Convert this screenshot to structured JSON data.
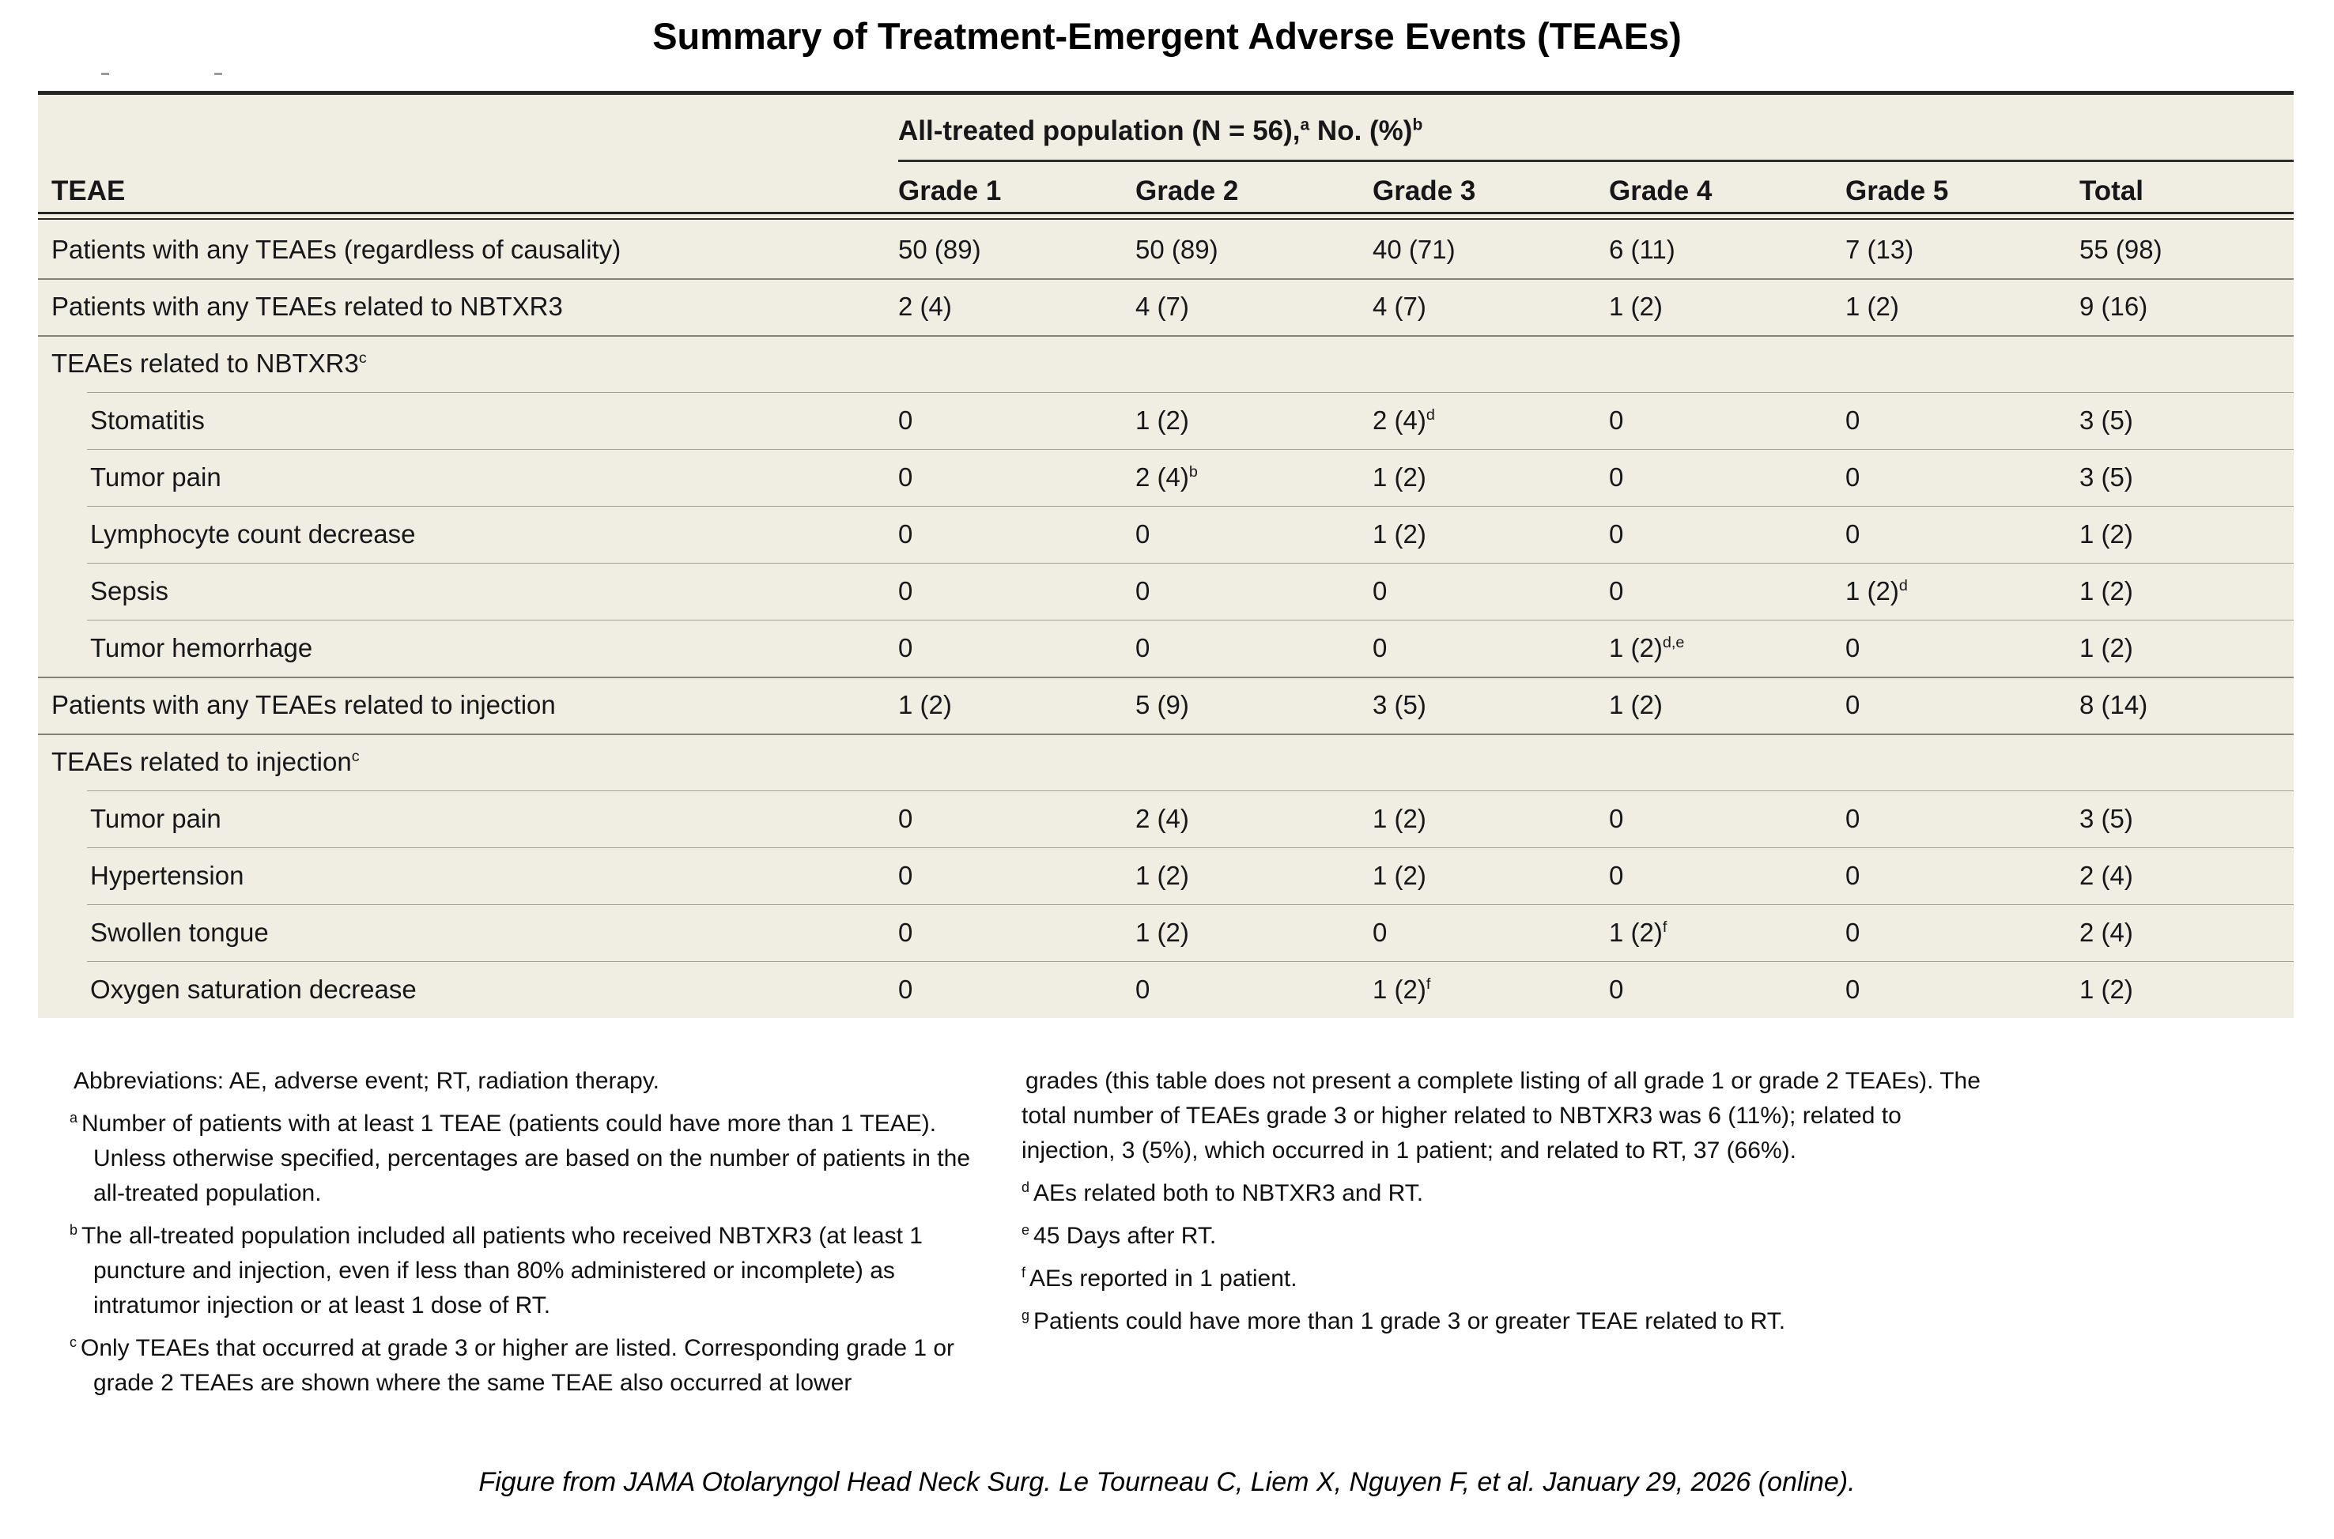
{
  "title": "Summary of Treatment-Emergent Adverse Events (TEAEs)",
  "colors": {
    "table_background": "#f0eee3",
    "heavy_rule": "#262626",
    "main_row_separator": "#84837b",
    "sub_row_separator": "#a09f93",
    "text": "#17171a"
  },
  "table": {
    "population_header": "All-treated population (N = 56),^a^ No. (%)^b^",
    "row_header": "TEAE",
    "columns": [
      "Grade 1",
      "Grade 2",
      "Grade 3",
      "Grade 4",
      "Grade 5",
      "Total"
    ],
    "rows": [
      {
        "label": "Patients with any TEAEs (regardless of causality)",
        "indent": 0,
        "section": false,
        "values": [
          "50 (89)",
          "50 (89)",
          "40 (71)",
          "6 (11)",
          "7 (13)",
          "55 (98)"
        ]
      },
      {
        "label": "Patients with any TEAEs related to NBTXR3",
        "indent": 0,
        "section": false,
        "values": [
          "2 (4)",
          "4 (7)",
          "4 (7)",
          "1 (2)",
          "1 (2)",
          "9 (16)"
        ]
      },
      {
        "label": "TEAEs related to NBTXR3^c^",
        "indent": 0,
        "section": true,
        "values": [
          "",
          "",
          "",
          "",
          "",
          ""
        ]
      },
      {
        "label": "Stomatitis",
        "indent": 1,
        "section": false,
        "values": [
          "0",
          "1 (2)",
          "2 (4)^d^",
          "0",
          "0",
          "3 (5)"
        ]
      },
      {
        "label": "Tumor pain",
        "indent": 1,
        "section": false,
        "values": [
          "0",
          "2 (4)^b^",
          "1 (2)",
          "0",
          "0",
          "3 (5)"
        ]
      },
      {
        "label": "Lymphocyte count decrease",
        "indent": 1,
        "section": false,
        "values": [
          "0",
          "0",
          "1 (2)",
          "0",
          "0",
          "1 (2)"
        ]
      },
      {
        "label": "Sepsis",
        "indent": 1,
        "section": false,
        "values": [
          "0",
          "0",
          "0",
          "0",
          "1 (2)^d^",
          "1 (2)"
        ]
      },
      {
        "label": "Tumor hemorrhage",
        "indent": 1,
        "section": false,
        "values": [
          "0",
          "0",
          "0",
          "1 (2)^d,e^",
          "0",
          "1 (2)"
        ]
      },
      {
        "label": "Patients with any TEAEs related to injection",
        "indent": 0,
        "section": false,
        "values": [
          "1 (2)",
          "5 (9)",
          "3 (5)",
          "1 (2)",
          "0",
          "8 (14)"
        ]
      },
      {
        "label": "TEAEs related to injection^c^",
        "indent": 0,
        "section": true,
        "values": [
          "",
          "",
          "",
          "",
          "",
          ""
        ]
      },
      {
        "label": "Tumor pain",
        "indent": 1,
        "section": false,
        "values": [
          "0",
          "2 (4)",
          "1 (2)",
          "0",
          "0",
          "3 (5)"
        ]
      },
      {
        "label": "Hypertension",
        "indent": 1,
        "section": false,
        "values": [
          "0",
          "1 (2)",
          "1 (2)",
          "0",
          "0",
          "2 (4)"
        ]
      },
      {
        "label": "Swollen tongue",
        "indent": 1,
        "section": false,
        "values": [
          "0",
          "1 (2)",
          "0",
          "1 (2)^f^",
          "0",
          "2 (4)"
        ]
      },
      {
        "label": "Oxygen saturation decrease",
        "indent": 1,
        "section": false,
        "values": [
          "0",
          "0",
          "1 (2)^f^",
          "0",
          "0",
          "1 (2)"
        ]
      }
    ]
  },
  "footnotes": {
    "left": [
      {
        "sup": "",
        "text": "Abbreviations: AE, adverse event; RT, radiation therapy."
      },
      {
        "sup": "a",
        "text": "Number of patients with at least 1 TEAE (patients could have more than 1 TEAE). Unless otherwise specified, percentages are based on the number of patients in the all-treated population."
      },
      {
        "sup": "b",
        "text": "The all-treated population included all patients who received NBTXR3 (at least 1 puncture and injection, even if less than 80% administered or incomplete) as intratumor injection or at least 1 dose of RT."
      },
      {
        "sup": "c",
        "text": "Only TEAEs that occurred at grade 3 or higher are listed. Corresponding grade 1 or grade 2 TEAEs are shown where the same TEAE also occurred at lower"
      }
    ],
    "right": [
      {
        "sup": "",
        "text": "grades (this table does not present a complete listing of all grade 1 or grade 2 TEAEs). The total number of TEAEs grade 3 or higher related to NBTXR3 was 6 (11%); related to injection, 3 (5%), which occurred in 1 patient; and related to RT, 37 (66%)."
      },
      {
        "sup": "d",
        "text": "AEs related both to NBTXR3 and RT."
      },
      {
        "sup": "e",
        "text": "45 Days after RT."
      },
      {
        "sup": "f",
        "text": "AEs reported in 1 patient."
      },
      {
        "sup": "g",
        "text": "Patients could have more than 1 grade 3 or greater TEAE related to RT."
      }
    ]
  },
  "caption": "Figure from JAMA Otolaryngol Head Neck Surg. Le Tourneau C, Liem X, Nguyen F, et al. January 29, 2026 (online)."
}
